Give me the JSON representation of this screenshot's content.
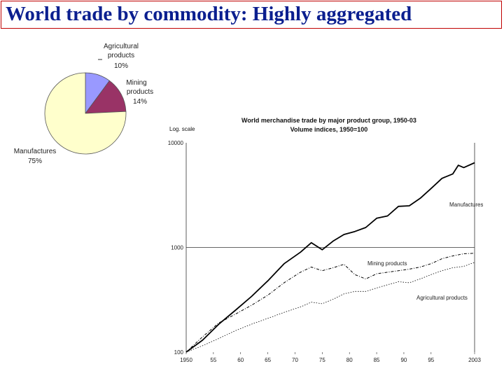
{
  "page": {
    "title": "World trade by commodity: Highly aggregated"
  },
  "colors": {
    "title_text": "#0b1f8f",
    "title_border": "#c00000",
    "agricultural": "#9999ff",
    "mining": "#993366",
    "manufactures": "#ffffcc",
    "line": "#000000"
  },
  "chart_data": [
    {
      "type": "pie",
      "title": "",
      "slices": [
        {
          "name": "Agricultural products",
          "value": 10,
          "label": "10%",
          "color": "#9999ff"
        },
        {
          "name": "Mining products",
          "value": 14,
          "label": "14%",
          "color": "#993366"
        },
        {
          "name": "Manufactures",
          "value": 75,
          "label": "75%",
          "color": "#ffffcc"
        }
      ],
      "labels": {
        "agri_line1": "Agricultural",
        "agri_line2": "products",
        "agri_pct": "10%",
        "mining_line1": "Mining",
        "mining_line2": "products",
        "mining_pct": "14%",
        "manuf_line1": "Manufactures",
        "manuf_pct": "75%"
      }
    },
    {
      "type": "line",
      "title": "World merchandise trade by major product group, 1950-03",
      "subtitle": "Volume indices, 1950=100",
      "scale_note": "Log. scale",
      "yscale": "log",
      "ylim": [
        100,
        10000
      ],
      "xlim": [
        1950,
        2003
      ],
      "y_ticks": [
        100,
        1000,
        10000
      ],
      "y_tick_labels": [
        "100",
        "1000",
        "10000"
      ],
      "x_ticks": [
        1950,
        1955,
        1960,
        1965,
        1970,
        1975,
        1980,
        1985,
        1990,
        1995,
        2003
      ],
      "x_tick_labels": [
        "1950",
        "55",
        "60",
        "65",
        "70",
        "75",
        "80",
        "85",
        "90",
        "95",
        "2003"
      ],
      "grid": "horizontal line at 1000",
      "series": [
        {
          "name": "Manufactures",
          "x": [
            1950,
            1953,
            1956,
            1959,
            1962,
            1965,
            1968,
            1971,
            1973,
            1975,
            1977,
            1979,
            1981,
            1983,
            1985,
            1987,
            1989,
            1991,
            1993,
            1995,
            1997,
            1999,
            2000,
            2001,
            2003
          ],
          "values": [
            100,
            130,
            185,
            250,
            340,
            480,
            700,
            900,
            1110,
            950,
            1150,
            1330,
            1420,
            1550,
            1900,
            2000,
            2470,
            2500,
            2950,
            3660,
            4570,
            5050,
            6100,
            5800,
            6450
          ]
        },
        {
          "name": "Mining products",
          "x": [
            1950,
            1953,
            1956,
            1959,
            1962,
            1965,
            1968,
            1971,
            1973,
            1975,
            1977,
            1979,
            1981,
            1983,
            1985,
            1987,
            1989,
            1991,
            1993,
            1995,
            1997,
            1999,
            2001,
            2003
          ],
          "values": [
            100,
            140,
            190,
            230,
            280,
            350,
            460,
            580,
            650,
            600,
            640,
            690,
            550,
            500,
            560,
            580,
            600,
            620,
            650,
            700,
            780,
            830,
            870,
            880
          ]
        },
        {
          "name": "Agricultural products",
          "x": [
            1950,
            1953,
            1956,
            1959,
            1962,
            1965,
            1968,
            1971,
            1973,
            1975,
            1977,
            1979,
            1981,
            1983,
            1985,
            1987,
            1989,
            1991,
            1993,
            1995,
            1997,
            1999,
            2001,
            2003
          ],
          "values": [
            100,
            115,
            135,
            160,
            185,
            210,
            240,
            270,
            300,
            290,
            320,
            360,
            380,
            380,
            410,
            440,
            470,
            460,
            500,
            550,
            600,
            640,
            660,
            720
          ]
        }
      ]
    }
  ]
}
